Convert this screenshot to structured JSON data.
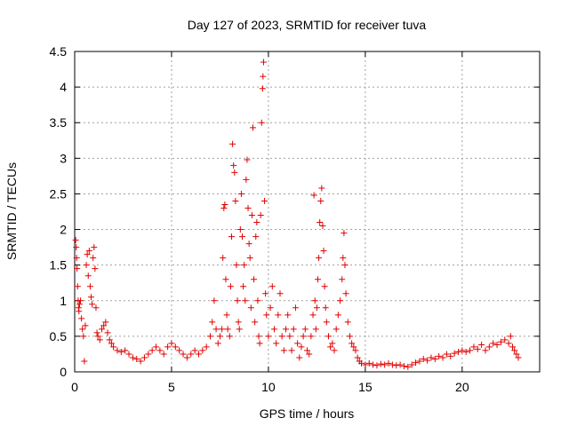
{
  "chart_data": {
    "type": "scatter",
    "title": "Day 127 of 2023, SRMTID for receiver tuva",
    "xlabel": "GPS time / hours",
    "ylabel": "SRMTID / TECUs",
    "xlim": [
      0,
      24
    ],
    "ylim": [
      0,
      4.5
    ],
    "xticks": [
      "0",
      "5",
      "10",
      "15",
      "20"
    ],
    "yticks": [
      "0",
      "0.5",
      "1",
      "1.5",
      "2",
      "2.5",
      "3",
      "3.5",
      "4",
      "4.5"
    ],
    "grid": true,
    "marker": "+",
    "color": "#e00000",
    "series": [
      {
        "name": "SRMTID",
        "points": [
          [
            0.05,
            1.85
          ],
          [
            0.08,
            1.75
          ],
          [
            0.1,
            1.6
          ],
          [
            0.12,
            1.45
          ],
          [
            0.15,
            1.2
          ],
          [
            0.18,
            1.0
          ],
          [
            0.2,
            0.9
          ],
          [
            0.22,
            0.85
          ],
          [
            0.25,
            0.95
          ],
          [
            0.3,
            1.0
          ],
          [
            0.35,
            0.75
          ],
          [
            0.4,
            0.6
          ],
          [
            0.45,
            0.5
          ],
          [
            0.5,
            0.15
          ],
          [
            0.55,
            0.65
          ],
          [
            0.6,
            1.5
          ],
          [
            0.65,
            1.65
          ],
          [
            0.7,
            1.35
          ],
          [
            0.75,
            1.7
          ],
          [
            0.8,
            1.2
          ],
          [
            0.85,
            1.05
          ],
          [
            0.9,
            0.95
          ],
          [
            0.95,
            1.6
          ],
          [
            1.0,
            1.75
          ],
          [
            1.05,
            1.45
          ],
          [
            1.1,
            0.9
          ],
          [
            1.15,
            0.55
          ],
          [
            1.2,
            0.5
          ],
          [
            1.3,
            0.45
          ],
          [
            1.4,
            0.6
          ],
          [
            1.5,
            0.65
          ],
          [
            1.6,
            0.7
          ],
          [
            1.7,
            0.55
          ],
          [
            1.8,
            0.45
          ],
          [
            1.9,
            0.4
          ],
          [
            2.0,
            0.35
          ],
          [
            2.2,
            0.3
          ],
          [
            2.4,
            0.28
          ],
          [
            2.6,
            0.3
          ],
          [
            2.8,
            0.25
          ],
          [
            3.0,
            0.2
          ],
          [
            3.2,
            0.18
          ],
          [
            3.4,
            0.15
          ],
          [
            3.6,
            0.2
          ],
          [
            3.8,
            0.25
          ],
          [
            4.0,
            0.3
          ],
          [
            4.2,
            0.35
          ],
          [
            4.4,
            0.3
          ],
          [
            4.6,
            0.25
          ],
          [
            4.8,
            0.35
          ],
          [
            5.0,
            0.4
          ],
          [
            5.2,
            0.35
          ],
          [
            5.4,
            0.3
          ],
          [
            5.6,
            0.25
          ],
          [
            5.8,
            0.2
          ],
          [
            6.0,
            0.25
          ],
          [
            6.2,
            0.3
          ],
          [
            6.4,
            0.25
          ],
          [
            6.6,
            0.3
          ],
          [
            6.8,
            0.35
          ],
          [
            7.0,
            0.5
          ],
          [
            7.1,
            0.7
          ],
          [
            7.2,
            1.0
          ],
          [
            7.3,
            0.6
          ],
          [
            7.4,
            0.4
          ],
          [
            7.5,
            0.5
          ],
          [
            7.6,
            0.6
          ],
          [
            7.65,
            1.6
          ],
          [
            7.7,
            2.3
          ],
          [
            7.75,
            2.35
          ],
          [
            7.8,
            1.3
          ],
          [
            7.85,
            0.8
          ],
          [
            7.9,
            0.6
          ],
          [
            8.0,
            0.5
          ],
          [
            8.05,
            1.2
          ],
          [
            8.1,
            1.9
          ],
          [
            8.15,
            3.2
          ],
          [
            8.2,
            2.9
          ],
          [
            8.25,
            2.8
          ],
          [
            8.3,
            2.4
          ],
          [
            8.35,
            1.5
          ],
          [
            8.4,
            1.0
          ],
          [
            8.45,
            0.7
          ],
          [
            8.5,
            0.6
          ],
          [
            8.55,
            2.0
          ],
          [
            8.6,
            2.5
          ],
          [
            8.65,
            1.9
          ],
          [
            8.7,
            1.2
          ],
          [
            8.75,
            1.5
          ],
          [
            8.8,
            1.0
          ],
          [
            8.85,
            2.7
          ],
          [
            8.9,
            2.98
          ],
          [
            8.95,
            2.3
          ],
          [
            9.0,
            1.8
          ],
          [
            9.05,
            1.6
          ],
          [
            9.1,
            0.9
          ],
          [
            9.15,
            2.2
          ],
          [
            9.2,
            3.43
          ],
          [
            9.25,
            1.3
          ],
          [
            9.3,
            0.7
          ],
          [
            9.35,
            1.9
          ],
          [
            9.4,
            2.1
          ],
          [
            9.45,
            1.0
          ],
          [
            9.5,
            0.5
          ],
          [
            9.55,
            0.4
          ],
          [
            9.6,
            2.2
          ],
          [
            9.65,
            3.5
          ],
          [
            9.7,
            3.98
          ],
          [
            9.72,
            4.15
          ],
          [
            9.75,
            4.35
          ],
          [
            9.8,
            2.4
          ],
          [
            9.85,
            1.1
          ],
          [
            9.9,
            0.8
          ],
          [
            10.0,
            0.5
          ],
          [
            10.1,
            0.9
          ],
          [
            10.2,
            1.2
          ],
          [
            10.3,
            0.6
          ],
          [
            10.4,
            0.4
          ],
          [
            10.5,
            0.8
          ],
          [
            10.6,
            1.1
          ],
          [
            10.7,
            0.5
          ],
          [
            10.8,
            0.3
          ],
          [
            10.9,
            0.6
          ],
          [
            11.0,
            0.8
          ],
          [
            11.1,
            0.5
          ],
          [
            11.2,
            0.3
          ],
          [
            11.3,
            0.6
          ],
          [
            11.4,
            0.9
          ],
          [
            11.5,
            0.4
          ],
          [
            11.6,
            0.2
          ],
          [
            11.7,
            0.35
          ],
          [
            11.8,
            0.5
          ],
          [
            11.9,
            0.6
          ],
          [
            12.0,
            0.3
          ],
          [
            12.1,
            0.25
          ],
          [
            12.2,
            0.5
          ],
          [
            12.3,
            0.8
          ],
          [
            12.35,
            2.48
          ],
          [
            12.4,
            1.0
          ],
          [
            12.45,
            0.6
          ],
          [
            12.5,
            0.9
          ],
          [
            12.55,
            1.3
          ],
          [
            12.6,
            1.6
          ],
          [
            12.65,
            2.1
          ],
          [
            12.7,
            2.4
          ],
          [
            12.75,
            2.58
          ],
          [
            12.8,
            2.05
          ],
          [
            12.85,
            1.7
          ],
          [
            12.9,
            1.2
          ],
          [
            12.95,
            0.9
          ],
          [
            13.0,
            0.7
          ],
          [
            13.1,
            0.5
          ],
          [
            13.2,
            0.35
          ],
          [
            13.3,
            0.4
          ],
          [
            13.4,
            0.3
          ],
          [
            13.5,
            0.6
          ],
          [
            13.6,
            0.8
          ],
          [
            13.7,
            1.0
          ],
          [
            13.8,
            1.3
          ],
          [
            13.85,
            1.6
          ],
          [
            13.9,
            1.95
          ],
          [
            13.95,
            1.5
          ],
          [
            14.0,
            1.1
          ],
          [
            14.1,
            0.7
          ],
          [
            14.2,
            0.5
          ],
          [
            14.3,
            0.4
          ],
          [
            14.4,
            0.35
          ],
          [
            14.5,
            0.3
          ],
          [
            14.6,
            0.2
          ],
          [
            14.7,
            0.15
          ],
          [
            14.8,
            0.12
          ],
          [
            15.0,
            0.1
          ],
          [
            15.2,
            0.12
          ],
          [
            15.4,
            0.1
          ],
          [
            15.6,
            0.09
          ],
          [
            15.8,
            0.11
          ],
          [
            16.0,
            0.1
          ],
          [
            16.2,
            0.12
          ],
          [
            16.4,
            0.1
          ],
          [
            16.6,
            0.09
          ],
          [
            16.8,
            0.1
          ],
          [
            17.0,
            0.08
          ],
          [
            17.2,
            0.07
          ],
          [
            17.4,
            0.1
          ],
          [
            17.6,
            0.13
          ],
          [
            17.8,
            0.15
          ],
          [
            18.0,
            0.18
          ],
          [
            18.2,
            0.16
          ],
          [
            18.4,
            0.2
          ],
          [
            18.6,
            0.18
          ],
          [
            18.8,
            0.22
          ],
          [
            19.0,
            0.2
          ],
          [
            19.2,
            0.25
          ],
          [
            19.4,
            0.22
          ],
          [
            19.6,
            0.26
          ],
          [
            19.8,
            0.28
          ],
          [
            20.0,
            0.3
          ],
          [
            20.2,
            0.28
          ],
          [
            20.4,
            0.3
          ],
          [
            20.6,
            0.35
          ],
          [
            20.8,
            0.32
          ],
          [
            21.0,
            0.38
          ],
          [
            21.2,
            0.3
          ],
          [
            21.4,
            0.35
          ],
          [
            21.6,
            0.4
          ],
          [
            21.8,
            0.38
          ],
          [
            22.0,
            0.42
          ],
          [
            22.2,
            0.45
          ],
          [
            22.4,
            0.4
          ],
          [
            22.5,
            0.5
          ],
          [
            22.6,
            0.35
          ],
          [
            22.7,
            0.3
          ],
          [
            22.8,
            0.25
          ],
          [
            22.9,
            0.2
          ]
        ]
      }
    ]
  }
}
